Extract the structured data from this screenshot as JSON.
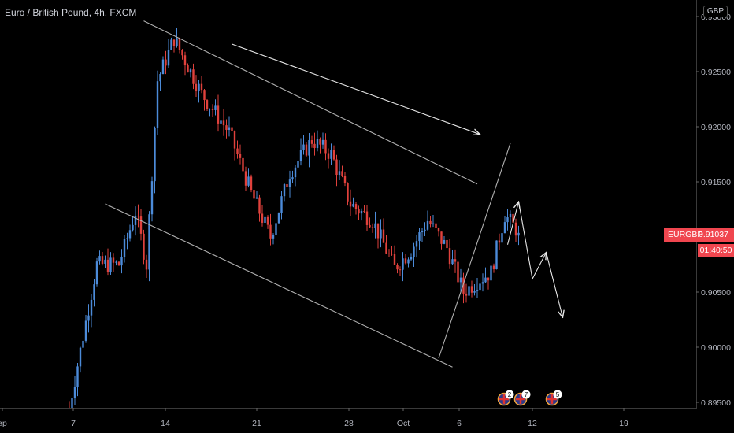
{
  "header": {
    "title": "Euro / British Pound, 4h, FXCM",
    "currency": "GBP"
  },
  "price_scale": {
    "symbol": "EURGBP",
    "last_price": "0.91037",
    "countdown": "01:40:50"
  },
  "colors": {
    "up": "#4c8bd9",
    "down": "#e0413c",
    "background": "#000000",
    "trendline": "#b0b0b0",
    "arrow": "#e8e8e8",
    "tag": "#f0464f"
  },
  "events": [
    {
      "icon": "gb-flag-icon",
      "count": "2"
    },
    {
      "icon": "gb-flag-icon",
      "count": "7"
    },
    {
      "icon": "gb-flag-icon",
      "count": "5"
    }
  ],
  "chart_data": {
    "type": "candlestick",
    "title": "Euro / British Pound, 4h, FXCM",
    "x_axis": {
      "tick_labels": [
        "ep",
        "7",
        "14",
        "21",
        "28",
        "Oct",
        "6",
        "12",
        "19"
      ]
    },
    "y_axis": {
      "tick_labels": [
        "0.89500",
        "0.90000",
        "0.90500",
        "0.91000",
        "0.91500",
        "0.92000",
        "0.92500",
        "0.93000"
      ],
      "ylim": [
        0.8945,
        0.9315
      ],
      "side": "right"
    },
    "last_price": 0.91037,
    "anchors": [
      {
        "x": 0.0,
        "y": 0.8945
      },
      {
        "x": 10.0,
        "y": 0.9075
      },
      {
        "x": 18.0,
        "y": 0.9075
      },
      {
        "x": 24.0,
        "y": 0.9123
      },
      {
        "x": 28.0,
        "y": 0.9075
      },
      {
        "x": 32.0,
        "y": 0.9242
      },
      {
        "x": 38.0,
        "y": 0.928
      },
      {
        "x": 48.0,
        "y": 0.923
      },
      {
        "x": 58.0,
        "y": 0.9195
      },
      {
        "x": 66.0,
        "y": 0.914
      },
      {
        "x": 73.0,
        "y": 0.91
      },
      {
        "x": 80.0,
        "y": 0.9158
      },
      {
        "x": 88.0,
        "y": 0.9188
      },
      {
        "x": 95.0,
        "y": 0.9175
      },
      {
        "x": 102.0,
        "y": 0.913
      },
      {
        "x": 110.0,
        "y": 0.9115
      },
      {
        "x": 118.0,
        "y": 0.9072
      },
      {
        "x": 124.0,
        "y": 0.9088
      },
      {
        "x": 130.0,
        "y": 0.9115
      },
      {
        "x": 137.0,
        "y": 0.909
      },
      {
        "x": 143.0,
        "y": 0.905
      },
      {
        "x": 148.0,
        "y": 0.906
      },
      {
        "x": 153.0,
        "y": 0.9068
      },
      {
        "x": 158.0,
        "y": 0.912
      },
      {
        "x": 163.0,
        "y": 0.9104
      }
    ],
    "annotations": [
      {
        "type": "trendline",
        "from": [
          27.0,
          0.9296
        ],
        "to": [
          148.0,
          0.9148
        ]
      },
      {
        "type": "trendline",
        "from": [
          13.0,
          0.913
        ],
        "to": [
          139.0,
          0.8982
        ]
      },
      {
        "type": "trendline",
        "from": [
          134.0,
          0.899
        ],
        "to": [
          160.0,
          0.9185
        ]
      },
      {
        "type": "arrow",
        "points": [
          [
            59.0,
            0.9275
          ],
          [
            149.0,
            0.9193
          ]
        ]
      },
      {
        "type": "arrow",
        "points": [
          [
            159.0,
            0.9093
          ],
          [
            163.0,
            0.9132
          ]
        ]
      },
      {
        "type": "arrow",
        "points": [
          [
            163.0,
            0.9132
          ],
          [
            168.0,
            0.9062
          ],
          [
            173.0,
            0.9086
          ]
        ]
      },
      {
        "type": "arrow",
        "points": [
          [
            173.0,
            0.9086
          ],
          [
            179.0,
            0.9027
          ]
        ]
      }
    ]
  }
}
